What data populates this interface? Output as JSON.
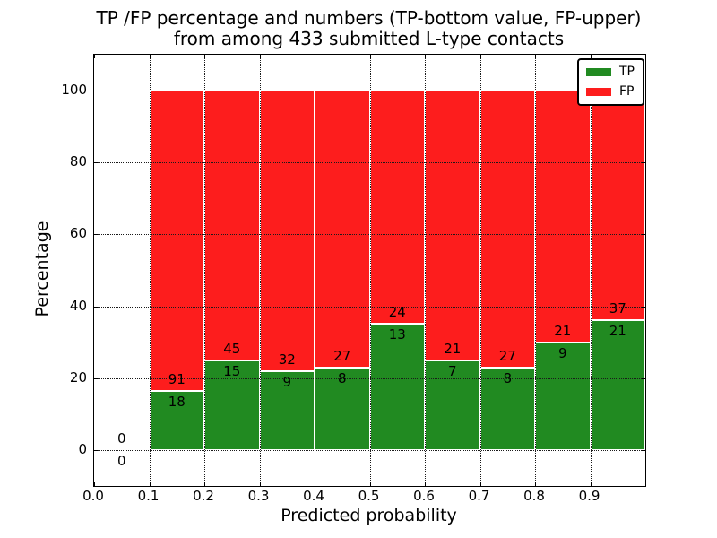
{
  "figure": {
    "title_line1": "TP /FP percentage and numbers (TP-bottom value, FP-upper)",
    "title_line2": "from among 433 submitted L-type contacts"
  },
  "chart_data": {
    "type": "bar",
    "stacked": true,
    "title": "TP /FP percentage and numbers (TP-bottom value, FP-upper) from among 433 submitted L-type contacts",
    "xlabel": "Predicted probability",
    "ylabel": "Percentage",
    "total_contacts": 433,
    "xlim": [
      0.0,
      1.0
    ],
    "ylim": [
      -10,
      110
    ],
    "x_tick_labels": [
      "0.0",
      "0.1",
      "0.2",
      "0.3",
      "0.4",
      "0.5",
      "0.6",
      "0.7",
      "0.8",
      "0.9"
    ],
    "y_tick_values": [
      0,
      20,
      40,
      60,
      80,
      100
    ],
    "grid_style": "dotted",
    "legend": {
      "position": "upper-right",
      "entries": [
        {
          "label": "TP",
          "color": "#218a21"
        },
        {
          "label": "FP",
          "color": "#fd1d1d"
        }
      ]
    },
    "bins": [
      {
        "x_start": 0.0,
        "x_end": 0.1,
        "tp": 0,
        "fp": 0,
        "tp_pct": 0.0
      },
      {
        "x_start": 0.1,
        "x_end": 0.2,
        "tp": 18,
        "fp": 91,
        "tp_pct": 16.51
      },
      {
        "x_start": 0.2,
        "x_end": 0.3,
        "tp": 15,
        "fp": 45,
        "tp_pct": 25.0
      },
      {
        "x_start": 0.3,
        "x_end": 0.4,
        "tp": 9,
        "fp": 32,
        "tp_pct": 21.95
      },
      {
        "x_start": 0.4,
        "x_end": 0.5,
        "tp": 8,
        "fp": 27,
        "tp_pct": 22.86
      },
      {
        "x_start": 0.5,
        "x_end": 0.6,
        "tp": 13,
        "fp": 24,
        "tp_pct": 35.14
      },
      {
        "x_start": 0.6,
        "x_end": 0.7,
        "tp": 7,
        "fp": 21,
        "tp_pct": 25.0
      },
      {
        "x_start": 0.7,
        "x_end": 0.8,
        "tp": 8,
        "fp": 27,
        "tp_pct": 22.86
      },
      {
        "x_start": 0.8,
        "x_end": 0.9,
        "tp": 9,
        "fp": 21,
        "tp_pct": 30.0
      },
      {
        "x_start": 0.9,
        "x_end": 1.0,
        "tp": 21,
        "fp": 37,
        "tp_pct": 36.21
      }
    ]
  }
}
